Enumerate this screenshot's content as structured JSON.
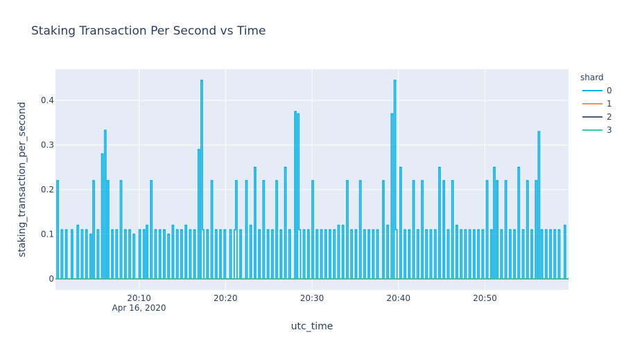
{
  "chart_data": {
    "type": "line",
    "title": "Staking Transaction Per Second vs Time",
    "xlabel": "utc_time",
    "ylabel": "staking_transaction_per_second",
    "x_tick_labels": [
      "20:10",
      "20:20",
      "20:30",
      "20:40",
      "20:50"
    ],
    "x_tick_sublabel": "Apr 16, 2020",
    "y_tick_labels": [
      "0",
      "0.1",
      "0.2",
      "0.3",
      "0.4"
    ],
    "x_range": [
      "2020-04-16 20:00:20",
      "2020-04-16 20:59:40"
    ],
    "ylim": [
      -0.025,
      0.47
    ],
    "grid": true,
    "legend": {
      "title": "shard",
      "position": "right"
    },
    "x_sample_interval_seconds": 10,
    "series": [
      {
        "name": "0",
        "color": "#00b0e8",
        "spikes": [
          {
            "time": "20:00:25",
            "value": 0.22
          },
          {
            "time": "20:00:55",
            "value": 0.11
          },
          {
            "time": "20:01:30",
            "value": 0.11
          },
          {
            "time": "20:02:10",
            "value": 0.11
          },
          {
            "time": "20:02:45",
            "value": 0.12
          },
          {
            "time": "20:03:20",
            "value": 0.11
          },
          {
            "time": "20:03:50",
            "value": 0.11
          },
          {
            "time": "20:04:20",
            "value": 0.1
          },
          {
            "time": "20:04:40",
            "value": 0.22
          },
          {
            "time": "20:05:10",
            "value": 0.11
          },
          {
            "time": "20:05:40",
            "value": 0.28
          },
          {
            "time": "20:05:55",
            "value": 0.333
          },
          {
            "time": "20:06:20",
            "value": 0.22
          },
          {
            "time": "20:06:50",
            "value": 0.11
          },
          {
            "time": "20:07:20",
            "value": 0.11
          },
          {
            "time": "20:07:45",
            "value": 0.22
          },
          {
            "time": "20:08:20",
            "value": 0.11
          },
          {
            "time": "20:08:50",
            "value": 0.11
          },
          {
            "time": "20:09:20",
            "value": 0.1
          },
          {
            "time": "20:09:55",
            "value": 0.11
          },
          {
            "time": "20:10:25",
            "value": 0.11
          },
          {
            "time": "20:10:50",
            "value": 0.12
          },
          {
            "time": "20:11:20",
            "value": 0.22
          },
          {
            "time": "20:11:50",
            "value": 0.11
          },
          {
            "time": "20:12:20",
            "value": 0.11
          },
          {
            "time": "20:12:50",
            "value": 0.11
          },
          {
            "time": "20:13:20",
            "value": 0.1
          },
          {
            "time": "20:13:50",
            "value": 0.12
          },
          {
            "time": "20:14:20",
            "value": 0.11
          },
          {
            "time": "20:14:50",
            "value": 0.11
          },
          {
            "time": "20:15:20",
            "value": 0.12
          },
          {
            "time": "20:15:50",
            "value": 0.11
          },
          {
            "time": "20:16:20",
            "value": 0.11
          },
          {
            "time": "20:16:50",
            "value": 0.29
          },
          {
            "time": "20:17:05",
            "value": 0.445
          },
          {
            "time": "20:17:20",
            "value": 0.11
          },
          {
            "time": "20:17:50",
            "value": 0.11
          },
          {
            "time": "20:18:20",
            "value": 0.22
          },
          {
            "time": "20:18:50",
            "value": 0.11
          },
          {
            "time": "20:19:20",
            "value": 0.11
          },
          {
            "time": "20:19:50",
            "value": 0.11
          },
          {
            "time": "20:20:25",
            "value": 0.11
          },
          {
            "time": "20:20:55",
            "value": 0.11
          },
          {
            "time": "20:21:10",
            "value": 0.22
          },
          {
            "time": "20:21:40",
            "value": 0.11
          },
          {
            "time": "20:22:20",
            "value": 0.22
          },
          {
            "time": "20:22:50",
            "value": 0.12
          },
          {
            "time": "20:23:20",
            "value": 0.25
          },
          {
            "time": "20:23:50",
            "value": 0.11
          },
          {
            "time": "20:24:20",
            "value": 0.22
          },
          {
            "time": "20:24:50",
            "value": 0.11
          },
          {
            "time": "20:25:20",
            "value": 0.11
          },
          {
            "time": "20:25:50",
            "value": 0.22
          },
          {
            "time": "20:26:20",
            "value": 0.11
          },
          {
            "time": "20:26:50",
            "value": 0.25
          },
          {
            "time": "20:27:20",
            "value": 0.11
          },
          {
            "time": "20:28:00",
            "value": 0.375
          },
          {
            "time": "20:28:15",
            "value": 0.37
          },
          {
            "time": "20:28:30",
            "value": 0.11
          },
          {
            "time": "20:29:00",
            "value": 0.11
          },
          {
            "time": "20:29:30",
            "value": 0.11
          },
          {
            "time": "20:30:00",
            "value": 0.22
          },
          {
            "time": "20:30:30",
            "value": 0.11
          },
          {
            "time": "20:31:00",
            "value": 0.11
          },
          {
            "time": "20:31:30",
            "value": 0.11
          },
          {
            "time": "20:32:00",
            "value": 0.11
          },
          {
            "time": "20:32:30",
            "value": 0.11
          },
          {
            "time": "20:33:00",
            "value": 0.12
          },
          {
            "time": "20:33:30",
            "value": 0.12
          },
          {
            "time": "20:34:00",
            "value": 0.22
          },
          {
            "time": "20:34:30",
            "value": 0.11
          },
          {
            "time": "20:35:00",
            "value": 0.11
          },
          {
            "time": "20:35:30",
            "value": 0.22
          },
          {
            "time": "20:36:00",
            "value": 0.11
          },
          {
            "time": "20:36:30",
            "value": 0.11
          },
          {
            "time": "20:37:00",
            "value": 0.11
          },
          {
            "time": "20:37:30",
            "value": 0.11
          },
          {
            "time": "20:38:10",
            "value": 0.22
          },
          {
            "time": "20:38:40",
            "value": 0.12
          },
          {
            "time": "20:39:10",
            "value": 0.37
          },
          {
            "time": "20:39:25",
            "value": 0.445
          },
          {
            "time": "20:39:40",
            "value": 0.11
          },
          {
            "time": "20:40:10",
            "value": 0.25
          },
          {
            "time": "20:40:40",
            "value": 0.11
          },
          {
            "time": "20:41:10",
            "value": 0.11
          },
          {
            "time": "20:41:40",
            "value": 0.22
          },
          {
            "time": "20:42:10",
            "value": 0.11
          },
          {
            "time": "20:42:40",
            "value": 0.22
          },
          {
            "time": "20:43:10",
            "value": 0.11
          },
          {
            "time": "20:43:40",
            "value": 0.11
          },
          {
            "time": "20:44:10",
            "value": 0.11
          },
          {
            "time": "20:44:40",
            "value": 0.25
          },
          {
            "time": "20:45:10",
            "value": 0.22
          },
          {
            "time": "20:45:40",
            "value": 0.11
          },
          {
            "time": "20:46:10",
            "value": 0.22
          },
          {
            "time": "20:46:40",
            "value": 0.12
          },
          {
            "time": "20:47:10",
            "value": 0.11
          },
          {
            "time": "20:47:40",
            "value": 0.11
          },
          {
            "time": "20:48:10",
            "value": 0.11
          },
          {
            "time": "20:48:40",
            "value": 0.11
          },
          {
            "time": "20:49:10",
            "value": 0.11
          },
          {
            "time": "20:49:40",
            "value": 0.11
          },
          {
            "time": "20:50:10",
            "value": 0.22
          },
          {
            "time": "20:50:40",
            "value": 0.11
          },
          {
            "time": "20:51:00",
            "value": 0.25
          },
          {
            "time": "20:51:20",
            "value": 0.22
          },
          {
            "time": "20:51:50",
            "value": 0.11
          },
          {
            "time": "20:52:20",
            "value": 0.22
          },
          {
            "time": "20:52:50",
            "value": 0.11
          },
          {
            "time": "20:53:20",
            "value": 0.11
          },
          {
            "time": "20:53:50",
            "value": 0.25
          },
          {
            "time": "20:54:20",
            "value": 0.11
          },
          {
            "time": "20:54:50",
            "value": 0.22
          },
          {
            "time": "20:55:20",
            "value": 0.11
          },
          {
            "time": "20:55:50",
            "value": 0.22
          },
          {
            "time": "20:56:10",
            "value": 0.33
          },
          {
            "time": "20:56:30",
            "value": 0.11
          },
          {
            "time": "20:57:00",
            "value": 0.11
          },
          {
            "time": "20:57:30",
            "value": 0.11
          },
          {
            "time": "20:58:00",
            "value": 0.11
          },
          {
            "time": "20:58:30",
            "value": 0.11
          },
          {
            "time": "20:59:10",
            "value": 0.12
          }
        ]
      },
      {
        "name": "1",
        "color": "#ef8f5e",
        "constant_value": 0
      },
      {
        "name": "2",
        "color": "#4c5b75",
        "constant_value": 0
      },
      {
        "name": "3",
        "color": "#3cc7a0",
        "constant_value": 0
      }
    ]
  }
}
